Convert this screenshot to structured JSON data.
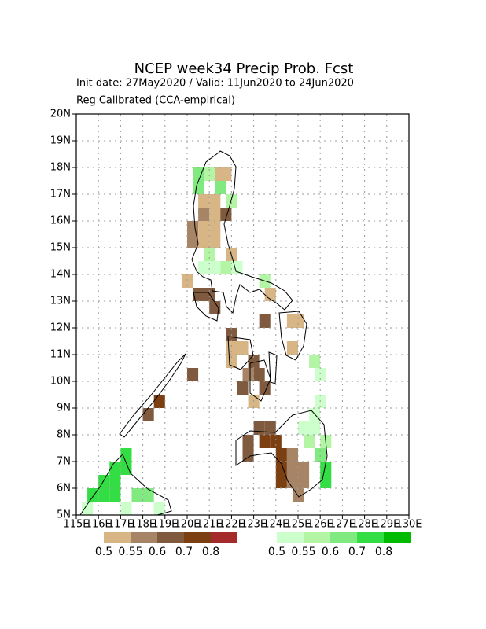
{
  "chart_data": {
    "type": "grid-map",
    "title": "NCEP week34 Precip Prob. Fcst",
    "subtitle": "Init date: 27May2020 / Valid: 11Jun2020 to 24Jun2020",
    "subtitle2": "Reg Calibrated (CCA-empirical)",
    "xlim": [
      115,
      130
    ],
    "ylim": [
      5,
      20
    ],
    "cell_size": 0.5,
    "grid": true,
    "xticks": [
      {
        "value": 115,
        "label": "115E"
      },
      {
        "value": 116,
        "label": "116E"
      },
      {
        "value": 117,
        "label": "117E"
      },
      {
        "value": 118,
        "label": "118E"
      },
      {
        "value": 119,
        "label": "119E"
      },
      {
        "value": 120,
        "label": "120E"
      },
      {
        "value": 121,
        "label": "121E"
      },
      {
        "value": 122,
        "label": "122E"
      },
      {
        "value": 123,
        "label": "123E"
      },
      {
        "value": 124,
        "label": "124E"
      },
      {
        "value": 125,
        "label": "125E"
      },
      {
        "value": 126,
        "label": "126E"
      },
      {
        "value": 127,
        "label": "127E"
      },
      {
        "value": 128,
        "label": "128E"
      },
      {
        "value": 129,
        "label": "129E"
      },
      {
        "value": 130,
        "label": "130E"
      }
    ],
    "yticks": [
      {
        "value": 5,
        "label": "5N"
      },
      {
        "value": 6,
        "label": "6N"
      },
      {
        "value": 7,
        "label": "7N"
      },
      {
        "value": 8,
        "label": "8N"
      },
      {
        "value": 9,
        "label": "9N"
      },
      {
        "value": 10,
        "label": "10N"
      },
      {
        "value": 11,
        "label": "11N"
      },
      {
        "value": 12,
        "label": "12N"
      },
      {
        "value": 13,
        "label": "13N"
      },
      {
        "value": 14,
        "label": "14N"
      },
      {
        "value": 15,
        "label": "15N"
      },
      {
        "value": 16,
        "label": "16N"
      },
      {
        "value": 17,
        "label": "17N"
      },
      {
        "value": 18,
        "label": "18N"
      },
      {
        "value": 19,
        "label": "19N"
      },
      {
        "value": 20,
        "label": "20N"
      }
    ],
    "scales": [
      {
        "colors": [
          "#d7b585",
          "#a88466",
          "#7f5a3f",
          "#7b3f12",
          "#a52a2a"
        ],
        "labels": [
          0.5,
          0.55,
          0.6,
          0.7,
          0.8
        ],
        "cells": [
          [
            121.25,
            17.5,
            0.5
          ],
          [
            121.5,
            17.5,
            0.5
          ],
          [
            120.5,
            16.5,
            0.5
          ],
          [
            121,
            16.5,
            0.5
          ],
          [
            120.5,
            16,
            0.55
          ],
          [
            121,
            16,
            0.5
          ],
          [
            121.5,
            16,
            0.6
          ],
          [
            121.75,
            16.5,
            0.6
          ],
          [
            120,
            15.5,
            0.55
          ],
          [
            120.5,
            15.5,
            0.5
          ],
          [
            121,
            15.5,
            0.5
          ],
          [
            120.5,
            15,
            0.5
          ],
          [
            120,
            15,
            0.55
          ],
          [
            121,
            15,
            0.5
          ],
          [
            121.75,
            14.5,
            0.5
          ],
          [
            119.75,
            13.5,
            0.5
          ],
          [
            120.25,
            13,
            0.6
          ],
          [
            120.75,
            13,
            0.6
          ],
          [
            121,
            12.5,
            0.6
          ],
          [
            123.5,
            13,
            0.5
          ],
          [
            123.25,
            12,
            0.6
          ],
          [
            124.5,
            12,
            0.5
          ],
          [
            124.75,
            12,
            0.5
          ],
          [
            124.5,
            11,
            0.5
          ],
          [
            121.75,
            11.5,
            0.6
          ],
          [
            121.75,
            11,
            0.5
          ],
          [
            122.25,
            11,
            0.5
          ],
          [
            121.75,
            10.5,
            0.5
          ],
          [
            122.75,
            10.5,
            0.6
          ],
          [
            122.5,
            10,
            0.55
          ],
          [
            123,
            10,
            0.6
          ],
          [
            122.25,
            9.5,
            0.6
          ],
          [
            123.25,
            9.5,
            0.6
          ],
          [
            122.75,
            9,
            0.5
          ],
          [
            120,
            10,
            0.6
          ],
          [
            118.5,
            9,
            0.7
          ],
          [
            118,
            8.5,
            0.6
          ],
          [
            122.5,
            7.5,
            0.6
          ],
          [
            122.5,
            7,
            0.6
          ],
          [
            123,
            8,
            0.6
          ],
          [
            123.5,
            8,
            0.6
          ],
          [
            123.25,
            7.5,
            0.7
          ],
          [
            123.75,
            7.5,
            0.7
          ],
          [
            124,
            7,
            0.7
          ],
          [
            124,
            6.5,
            0.7
          ],
          [
            124,
            6,
            0.7
          ],
          [
            124.5,
            7,
            0.55
          ],
          [
            124.5,
            6.5,
            0.55
          ],
          [
            125,
            6.5,
            0.55
          ],
          [
            124.5,
            6,
            0.55
          ],
          [
            125,
            6,
            0.55
          ],
          [
            124.75,
            5.5,
            0.55
          ]
        ]
      },
      {
        "colors": [
          "#ccffcc",
          "#b3f5a5",
          "#80ea80",
          "#33dd44",
          "#00bb00"
        ],
        "labels": [
          0.5,
          0.55,
          0.6,
          0.7,
          0.8
        ],
        "cells": [
          [
            120.25,
            17.5,
            0.6
          ],
          [
            120.25,
            17,
            0.6
          ],
          [
            120.75,
            17.5,
            0.55
          ],
          [
            121.25,
            17,
            0.6
          ],
          [
            121.75,
            16.5,
            0.55
          ],
          [
            120.75,
            14.5,
            0.55
          ],
          [
            121,
            14,
            0.5
          ],
          [
            121.5,
            14,
            0.55
          ],
          [
            122,
            14,
            0.5
          ],
          [
            120.5,
            14,
            0.5
          ],
          [
            123.25,
            13.5,
            0.55
          ],
          [
            125.5,
            10.5,
            0.55
          ],
          [
            125.75,
            10,
            0.5
          ],
          [
            125,
            8,
            0.5
          ],
          [
            125.5,
            8,
            0.5
          ],
          [
            125.5,
            8.5,
            0.5
          ],
          [
            125.75,
            9,
            0.5
          ],
          [
            125.25,
            7.5,
            0.55
          ],
          [
            126,
            7.5,
            0.55
          ],
          [
            125.75,
            7,
            0.6
          ],
          [
            126,
            6.5,
            0.7
          ],
          [
            126,
            6,
            0.7
          ],
          [
            115.5,
            5.5,
            0.7
          ],
          [
            116,
            5.5,
            0.7
          ],
          [
            116.5,
            5.5,
            0.7
          ],
          [
            116,
            6,
            0.7
          ],
          [
            116.5,
            6,
            0.7
          ],
          [
            116.5,
            6.5,
            0.7
          ],
          [
            117,
            6.5,
            0.7
          ],
          [
            117,
            7,
            0.7
          ],
          [
            117.5,
            5.5,
            0.6
          ],
          [
            118,
            5.5,
            0.6
          ],
          [
            118.5,
            5,
            0.5
          ],
          [
            115.25,
            5,
            0.5
          ],
          [
            117,
            5,
            0.5
          ]
        ]
      }
    ]
  }
}
